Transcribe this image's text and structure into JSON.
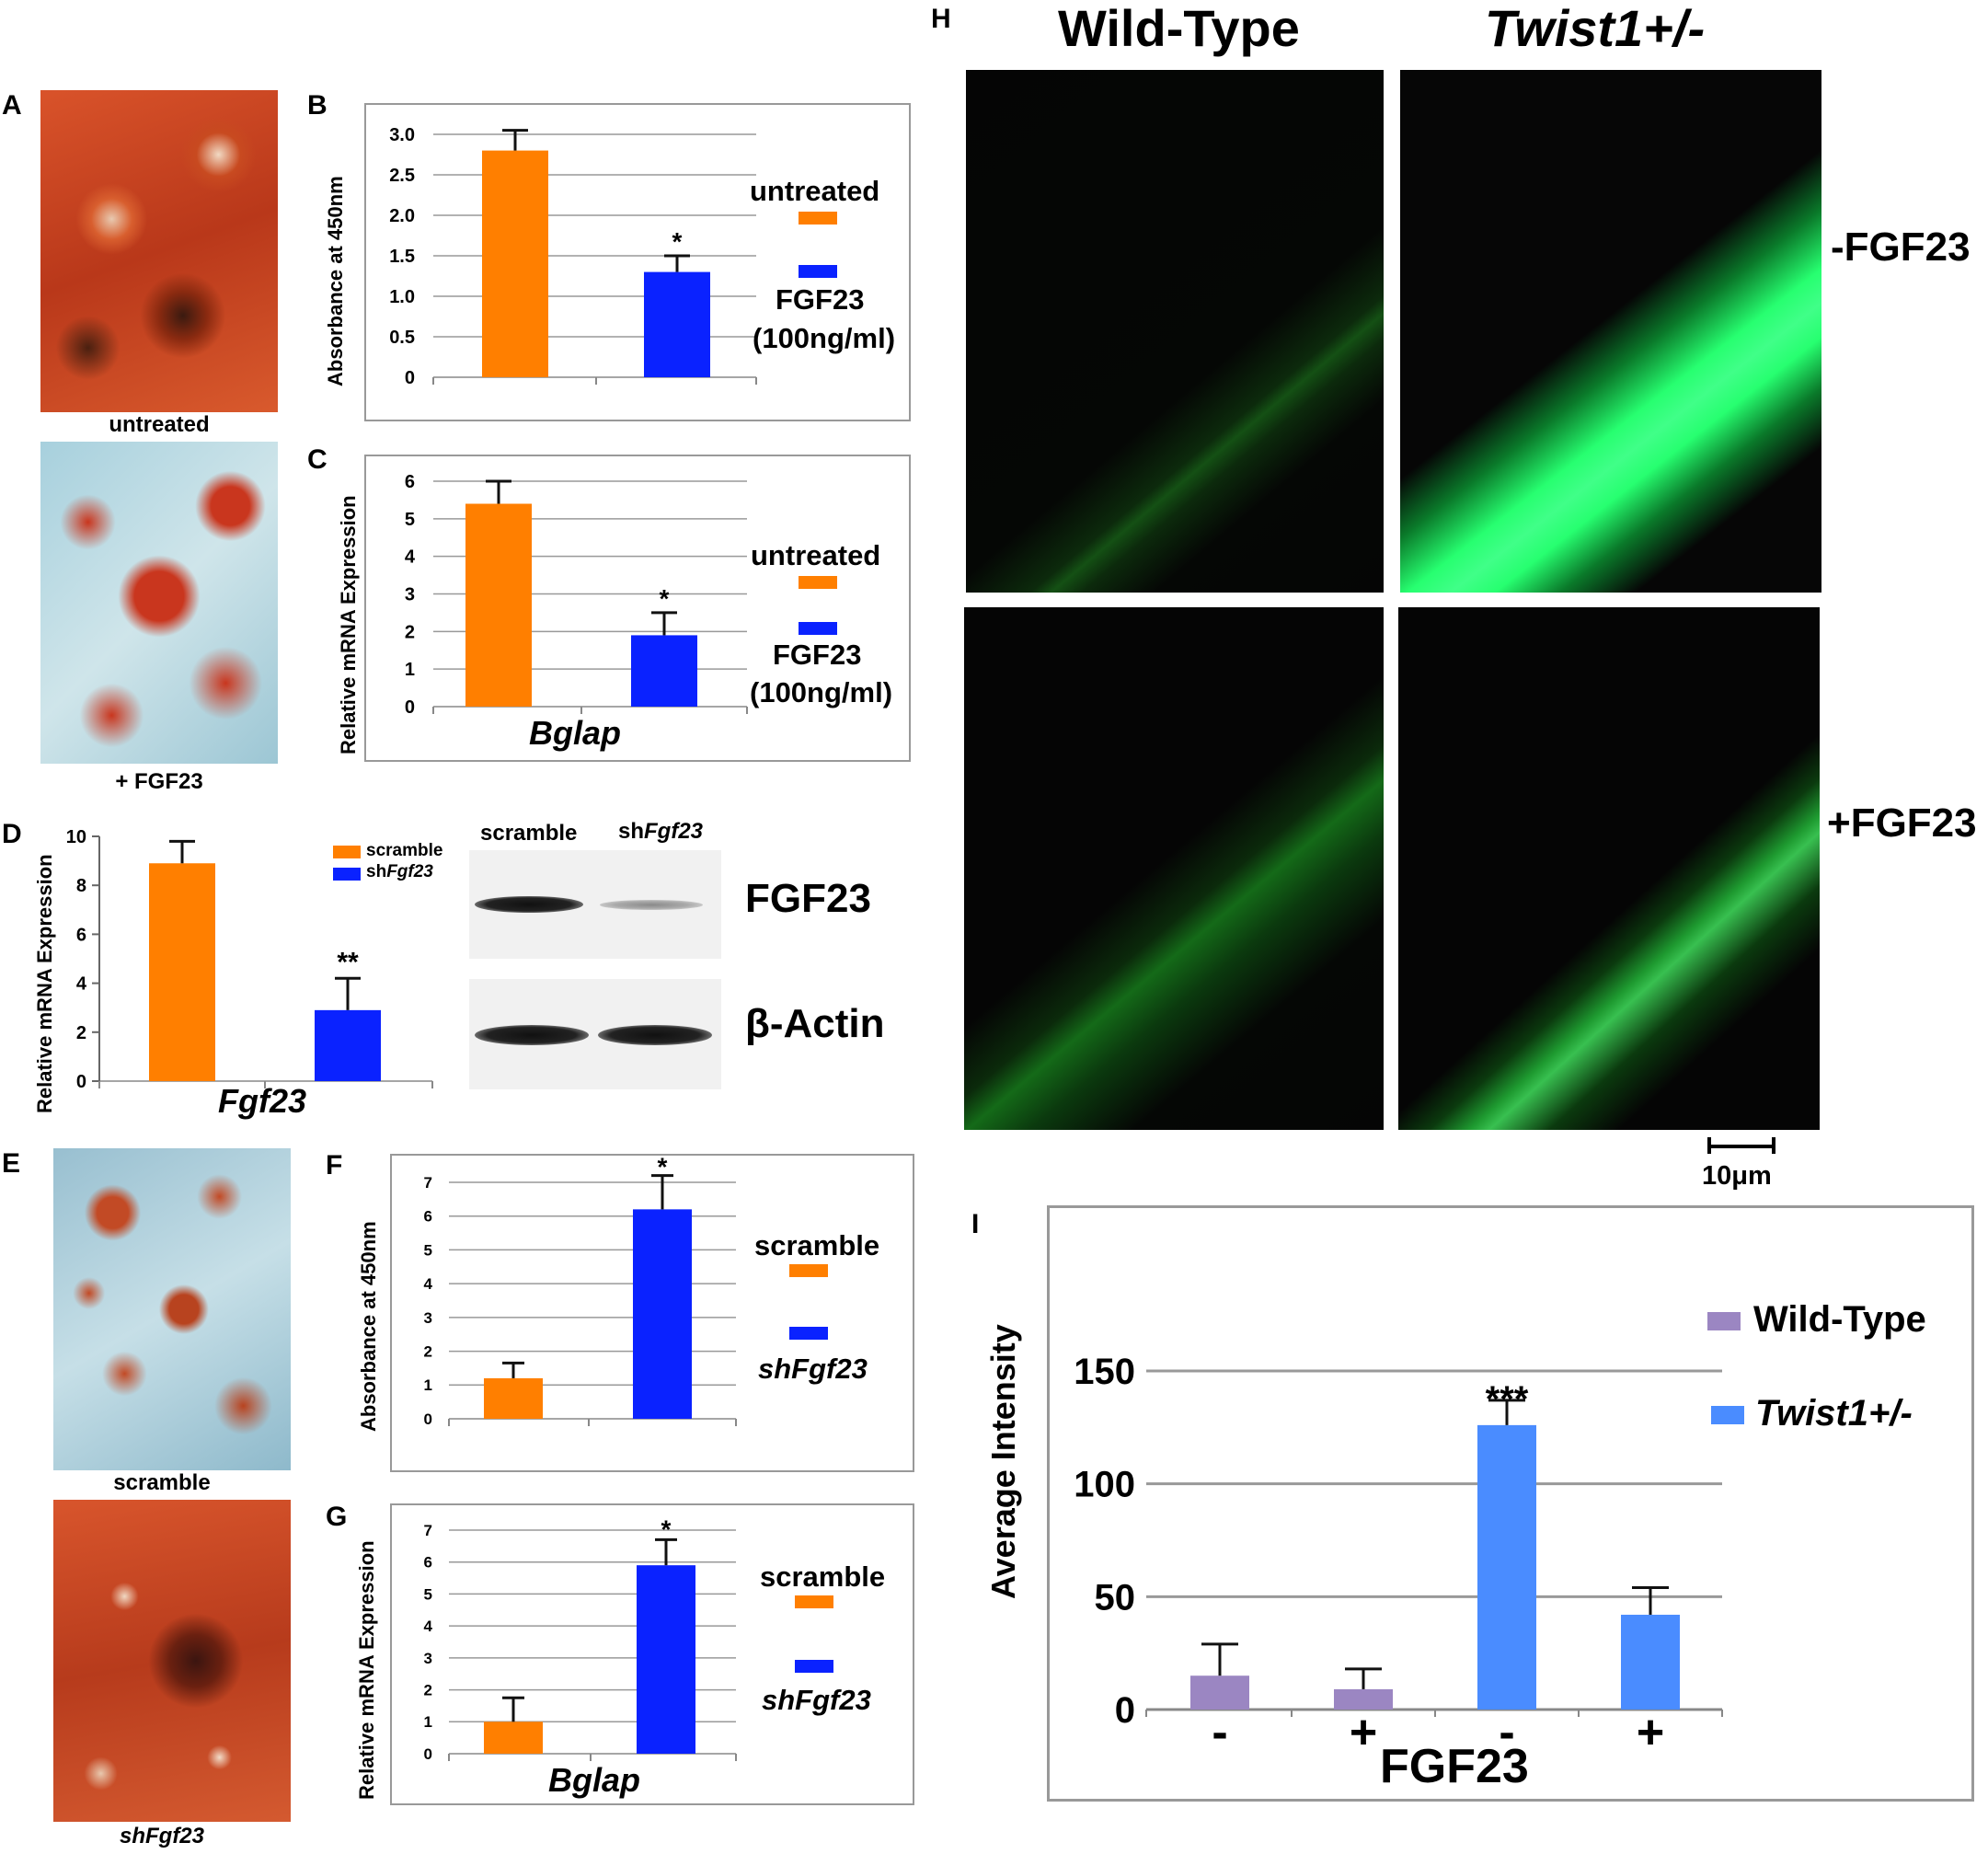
{
  "panels": {
    "A": {
      "letter": "A",
      "top_caption": "untreated",
      "bottom_caption": "+ FGF23"
    },
    "B": {
      "letter": "B",
      "ylabel": "Absorbance at 450nm",
      "ticks": [
        "0",
        "0.5",
        "1.0",
        "1.5",
        "2.0",
        "2.5",
        "3.0"
      ],
      "legend": [
        "untreated",
        "FGF23",
        "(100ng/ml)"
      ],
      "annotation": "*"
    },
    "C": {
      "letter": "C",
      "ylabel": "Relative mRNA Expression",
      "ticks": [
        "0",
        "1",
        "2",
        "3",
        "4",
        "5",
        "6"
      ],
      "xlabel": "Bglap",
      "legend": [
        "untreated",
        "FGF23",
        "(100ng/ml)"
      ],
      "annotation": "*"
    },
    "D": {
      "letter": "D",
      "ylabel": "Relative mRNA Expression",
      "ticks": [
        "0",
        "2",
        "4",
        "6",
        "8",
        "10"
      ],
      "xlabel": "Fgf23",
      "legend": [
        "scramble",
        "sh",
        "Fgf23"
      ],
      "annotation": "**",
      "blot": {
        "lane1": "scramble",
        "lane2_prefix": "sh",
        "lane2_italic": "Fgf23",
        "band1": "FGF23",
        "band2": "β-Actin"
      }
    },
    "E": {
      "letter": "E",
      "top_caption": "scramble",
      "bottom_caption": "shFgf23"
    },
    "F": {
      "letter": "F",
      "ylabel": "Absorbance at 450nm",
      "ticks": [
        "0",
        "1",
        "2",
        "3",
        "4",
        "5",
        "6",
        "7"
      ],
      "legend": [
        "scramble",
        "shFgf23"
      ],
      "annotation": "*"
    },
    "G": {
      "letter": "G",
      "ylabel": "Relative mRNA Expression",
      "ticks": [
        "0",
        "1",
        "2",
        "3",
        "4",
        "5",
        "6",
        "7"
      ],
      "xlabel": "Bglap",
      "legend": [
        "scramble",
        "shFgf23"
      ],
      "annotation": "*"
    },
    "H": {
      "letter": "H",
      "col1": "Wild-Type",
      "col2": "Twist1+/-",
      "row1": "-FGF23",
      "row2": "+FGF23",
      "scale": "10μm"
    },
    "I": {
      "letter": "I",
      "ylabel": "Average Intensity",
      "ticks": [
        "0",
        "50",
        "100",
        "150"
      ],
      "xticks": [
        "-",
        "+",
        "-",
        "+"
      ],
      "xlabel": "FGF23",
      "legend": [
        "Wild-Type",
        "Twist1+/-"
      ],
      "annotation": "***"
    }
  },
  "colors": {
    "orange": "#ff7f00",
    "blue": "#0a22ff",
    "purple": "#9b86c2",
    "lightblue": "#4a8cff"
  },
  "chart_data": [
    {
      "id": "B",
      "type": "bar",
      "categories": [
        "untreated",
        "FGF23 (100ng/ml)"
      ],
      "values": [
        2.8,
        1.3
      ],
      "errors": [
        0.25,
        0.2
      ],
      "ylabel": "Absorbance at 450nm",
      "ylim": [
        0,
        3.0
      ],
      "grid": true
    },
    {
      "id": "C",
      "type": "bar",
      "categories": [
        "untreated",
        "FGF23 (100ng/ml)"
      ],
      "values": [
        5.4,
        1.9
      ],
      "errors": [
        0.6,
        0.6
      ],
      "xlabel": "Bglap",
      "ylabel": "Relative mRNA Expression",
      "ylim": [
        0,
        6
      ],
      "grid": true
    },
    {
      "id": "D",
      "type": "bar",
      "categories": [
        "scramble",
        "shFgf23"
      ],
      "values": [
        8.9,
        2.9
      ],
      "errors": [
        0.9,
        1.3
      ],
      "xlabel": "Fgf23",
      "ylabel": "Relative mRNA Expression",
      "ylim": [
        0,
        10
      ],
      "grid": false
    },
    {
      "id": "F",
      "type": "bar",
      "categories": [
        "scramble",
        "shFgf23"
      ],
      "values": [
        1.2,
        6.2
      ],
      "errors": [
        0.45,
        1.0
      ],
      "ylabel": "Absorbance at 450nm",
      "ylim": [
        0,
        7
      ],
      "grid": true
    },
    {
      "id": "G",
      "type": "bar",
      "categories": [
        "scramble",
        "shFgf23"
      ],
      "values": [
        1.0,
        5.9
      ],
      "errors": [
        0.75,
        0.8
      ],
      "xlabel": "Bglap",
      "ylabel": "Relative mRNA Expression",
      "ylim": [
        0,
        7
      ],
      "grid": true
    },
    {
      "id": "I",
      "type": "bar",
      "categories": [
        "Wild-Type -FGF23",
        "Wild-Type +FGF23",
        "Twist1+/- -FGF23",
        "Twist1+/- +FGF23"
      ],
      "values": [
        15,
        9,
        126,
        42
      ],
      "errors": [
        14,
        9,
        11,
        12
      ],
      "xlabel": "FGF23",
      "ylabel": "Average Intensity",
      "ylim": [
        0,
        150
      ],
      "grid": true
    }
  ]
}
